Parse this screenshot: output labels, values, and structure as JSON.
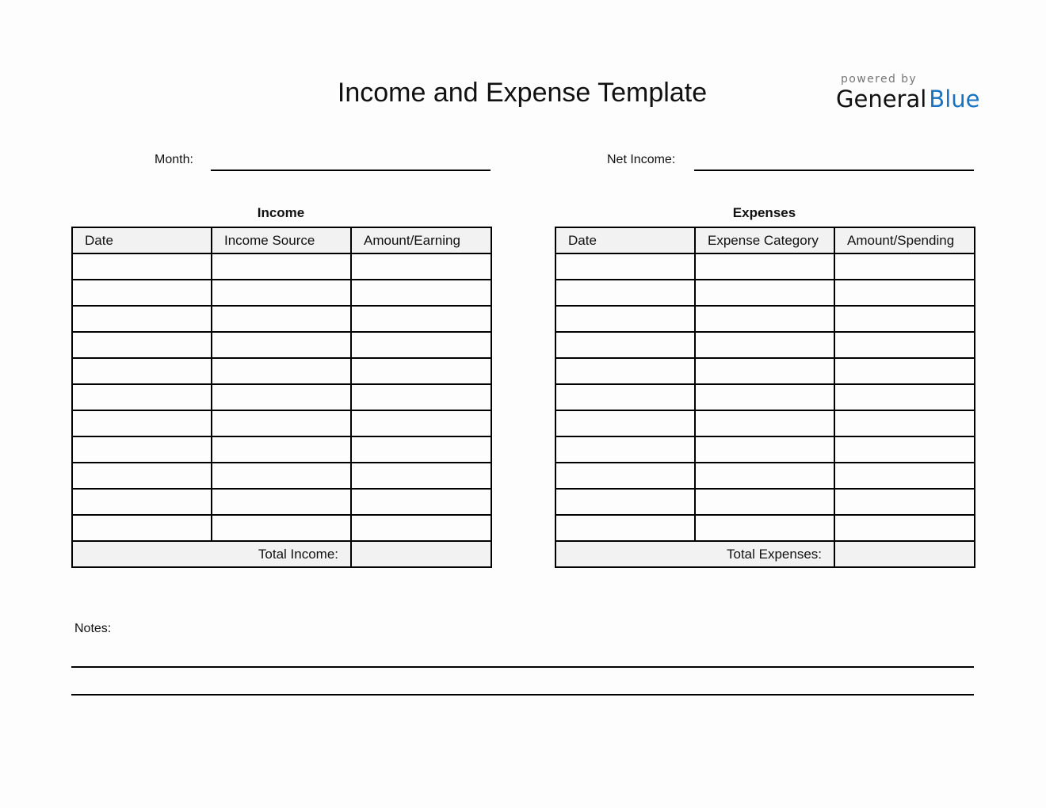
{
  "title": "Income and Expense Template",
  "branding": {
    "powered_by": "powered by",
    "brand_left": "General",
    "brand_right": "Blue",
    "brand_color": "#1a73c0"
  },
  "fields": {
    "month_label": "Month:",
    "net_income_label": "Net Income:",
    "notes_label": "Notes:"
  },
  "income": {
    "heading": "Income",
    "columns": [
      "Date",
      "Income Source",
      "Amount/Earning"
    ],
    "row_count": 11,
    "total_label": "Total Income:"
  },
  "expenses": {
    "heading": "Expenses",
    "columns": [
      "Date",
      "Expense Category",
      "Amount/Spending"
    ],
    "row_count": 11,
    "total_label": "Total Expenses:"
  }
}
